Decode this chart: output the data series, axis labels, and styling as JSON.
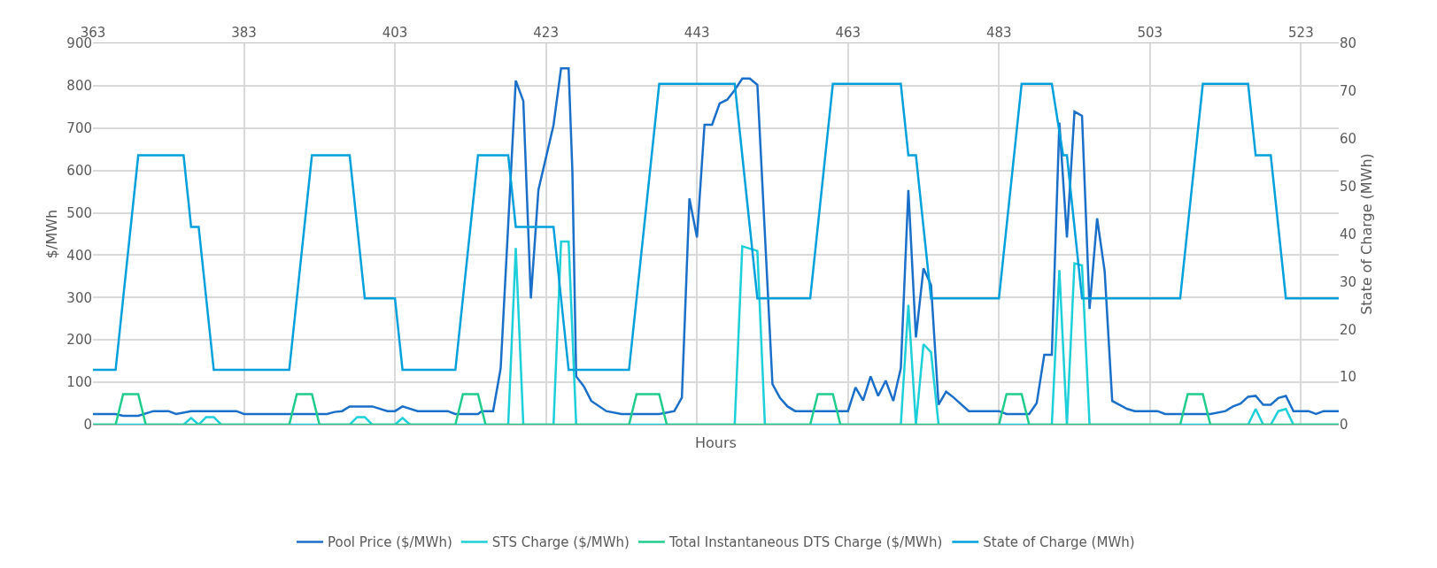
{
  "chart_data": {
    "type": "line",
    "xlabel": "Hours",
    "ylabel": "$/MWh",
    "y2label": "State of Charge (MWh)",
    "xlim": [
      363,
      528
    ],
    "xticks": [
      363,
      383,
      403,
      423,
      443,
      463,
      483,
      503,
      523
    ],
    "ylim": [
      0,
      900
    ],
    "yticks": [
      0,
      100,
      200,
      300,
      400,
      500,
      600,
      700,
      800,
      900
    ],
    "y2lim": [
      0,
      80
    ],
    "y2ticks": [
      0,
      10,
      20,
      30,
      40,
      50,
      60,
      70,
      80
    ],
    "grid": true,
    "legend": "bottom",
    "marker": "none",
    "line_style": "solid",
    "series": [
      {
        "name": "Pool Price ($/MWh)",
        "color": "#1a6fc9",
        "x": [
          363,
          366,
          367,
          369,
          371,
          373,
          374,
          376,
          382,
          383,
          394,
          395,
          396,
          397,
          400,
          402,
          403,
          404,
          406,
          410,
          411,
          414,
          414.5,
          416,
          417,
          419,
          420,
          421,
          422,
          424,
          425,
          426,
          426.5,
          427,
          428,
          429,
          431,
          433,
          438,
          440,
          441,
          442,
          443,
          444,
          445,
          446,
          447,
          448,
          449,
          450,
          451,
          453,
          454,
          455,
          456,
          463,
          464,
          465,
          466,
          467,
          468,
          469,
          470,
          471,
          472,
          473,
          474,
          475,
          476,
          477,
          479,
          483,
          484,
          487,
          488,
          489,
          490,
          491,
          492,
          493,
          494,
          495,
          496,
          497,
          498,
          500,
          501,
          504,
          505,
          511,
          513,
          514,
          515,
          516,
          517,
          518,
          519,
          520,
          521,
          522,
          524,
          525,
          526,
          528
        ],
        "values": [
          25,
          25,
          21,
          21,
          32,
          32,
          25,
          32,
          32,
          25,
          25,
          30,
          32,
          43,
          43,
          32,
          32,
          43,
          32,
          32,
          25,
          25,
          32,
          32,
          133,
          812,
          764,
          298,
          554,
          707,
          841,
          841,
          598,
          114,
          91,
          56,
          32,
          25,
          25,
          32,
          64,
          534,
          442,
          708,
          708,
          758,
          767,
          790,
          817,
          817,
          802,
          96,
          63,
          43,
          32,
          32,
          88,
          57,
          114,
          68,
          104,
          56,
          133,
          554,
          206,
          369,
          330,
          47,
          78,
          64,
          32,
          32,
          25,
          25,
          51,
          165,
          165,
          713,
          442,
          739,
          729,
          273,
          487,
          362,
          56,
          37,
          32,
          32,
          25,
          25,
          32,
          43,
          50,
          66,
          68,
          47,
          47,
          63,
          68,
          32,
          32,
          25,
          32,
          32
        ]
      },
      {
        "name": "STS Charge ($/MWh)",
        "color": "#1ccfd8",
        "x": [
          363,
          375,
          376,
          377,
          378,
          379,
          380,
          397,
          398,
          399,
          400,
          403,
          404,
          405,
          418,
          419,
          420,
          424,
          425,
          426,
          427,
          448,
          449,
          451,
          452,
          470,
          471,
          472,
          473,
          474,
          475,
          490,
          491,
          492,
          493,
          494,
          495,
          516,
          517,
          518,
          519,
          520,
          521,
          522,
          528
        ],
        "values": [
          0,
          0,
          16,
          0,
          18,
          18,
          0,
          0,
          18,
          18,
          0,
          0,
          16,
          0,
          0,
          417,
          0,
          0,
          432,
          432,
          0,
          0,
          421,
          410,
          0,
          0,
          283,
          0,
          190,
          171,
          0,
          0,
          365,
          0,
          381,
          376,
          0,
          0,
          37,
          0,
          0,
          32,
          37,
          0,
          0
        ]
      },
      {
        "name": "Total Instantaneous DTS Charge ($/MWh)",
        "color": "#20cc8c",
        "x": [
          363,
          366,
          367,
          369,
          370,
          389,
          390,
          392,
          393,
          411,
          412,
          414,
          415,
          434,
          435,
          438,
          439,
          458,
          459,
          461,
          462,
          483,
          484,
          486,
          487,
          507,
          508,
          510,
          511,
          528
        ],
        "values": [
          0,
          0,
          72,
          72,
          0,
          0,
          72,
          72,
          0,
          0,
          72,
          72,
          0,
          0,
          72,
          72,
          0,
          0,
          72,
          72,
          0,
          0,
          72,
          72,
          0,
          0,
          72,
          72,
          0,
          0
        ]
      },
      {
        "name": "State of Charge (MWh)",
        "color": "#00a0dc",
        "axis": "y2",
        "x": [
          363,
          366,
          369,
          375,
          376,
          377,
          379,
          389,
          392,
          397,
          399,
          403,
          404,
          411,
          414,
          418,
          419,
          424,
          426,
          434,
          438,
          448,
          451,
          458,
          461,
          470,
          471,
          472,
          474,
          483,
          486,
          490,
          491.5,
          492,
          494,
          507,
          510,
          516,
          517,
          519,
          521,
          528
        ],
        "values": [
          11.5,
          11.5,
          56.5,
          56.5,
          41.5,
          41.5,
          11.5,
          11.5,
          56.5,
          56.5,
          26.5,
          26.5,
          11.5,
          11.5,
          56.5,
          56.5,
          41.5,
          41.5,
          11.5,
          11.5,
          71.5,
          71.5,
          26.5,
          26.5,
          71.5,
          71.5,
          56.5,
          56.5,
          26.5,
          26.5,
          71.5,
          71.5,
          56.5,
          56.5,
          26.5,
          26.5,
          71.5,
          71.5,
          56.5,
          56.5,
          26.5,
          26.5
        ]
      }
    ]
  }
}
